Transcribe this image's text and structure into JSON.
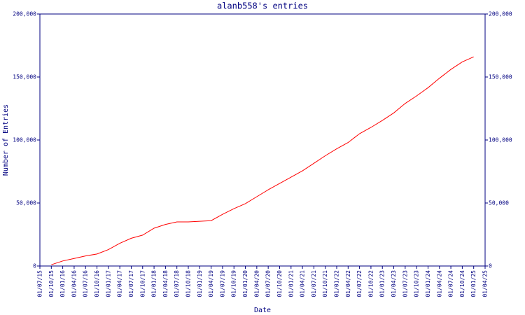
{
  "chart_data": {
    "type": "line",
    "title": "alanb558's entries",
    "x_label": "Date",
    "y_label": "Number of Entries",
    "x": [
      "01/07/15",
      "01/10/15",
      "01/01/16",
      "01/04/16",
      "01/07/16",
      "01/10/16",
      "01/01/17",
      "01/04/17",
      "01/07/17",
      "01/10/17",
      "01/01/18",
      "01/04/18",
      "01/07/18",
      "01/10/18",
      "01/01/19",
      "01/04/19",
      "01/07/19",
      "01/10/19",
      "01/01/20",
      "01/04/20",
      "01/07/20",
      "01/10/20",
      "01/01/21",
      "01/04/21",
      "01/07/21",
      "01/10/21",
      "01/01/22",
      "01/04/22",
      "01/07/22",
      "01/10/22",
      "01/01/23",
      "01/04/23",
      "01/07/23",
      "01/10/23",
      "01/01/24",
      "01/04/24",
      "01/07/24",
      "01/10/24",
      "01/01/25",
      "01/04/25"
    ],
    "series": [
      {
        "color": "#ff0000",
        "values": [
          null,
          1000,
          4000,
          6000,
          8000,
          9500,
          13000,
          18000,
          22000,
          24500,
          30000,
          33000,
          35000,
          35000,
          35500,
          36000,
          41000,
          45500,
          49500,
          55000,
          60500,
          65500,
          70500,
          75500,
          81500,
          87500,
          93000,
          98000,
          105000,
          110000,
          115500,
          121500,
          129000,
          135000,
          141500,
          149000,
          156000,
          162000,
          166000,
          null
        ]
      }
    ],
    "ylim": [
      0,
      200000
    ],
    "yticks": [
      0,
      {
        "value": 50000,
        "label": "50,000"
      },
      {
        "value": 100000,
        "label": "100,000"
      },
      {
        "value": 150000,
        "label": "150,000"
      },
      {
        "value": 200000,
        "label": "200,000"
      }
    ],
    "y2lim": [
      0,
      200000
    ],
    "y2ticks": [
      0,
      {
        "value": 50000,
        "label": "50,000"
      },
      {
        "value": 100000,
        "label": "100,000"
      },
      {
        "value": 150000,
        "label": "150,000"
      },
      {
        "value": 200000,
        "label": "200,000"
      }
    ],
    "axis_color": "#000080"
  }
}
